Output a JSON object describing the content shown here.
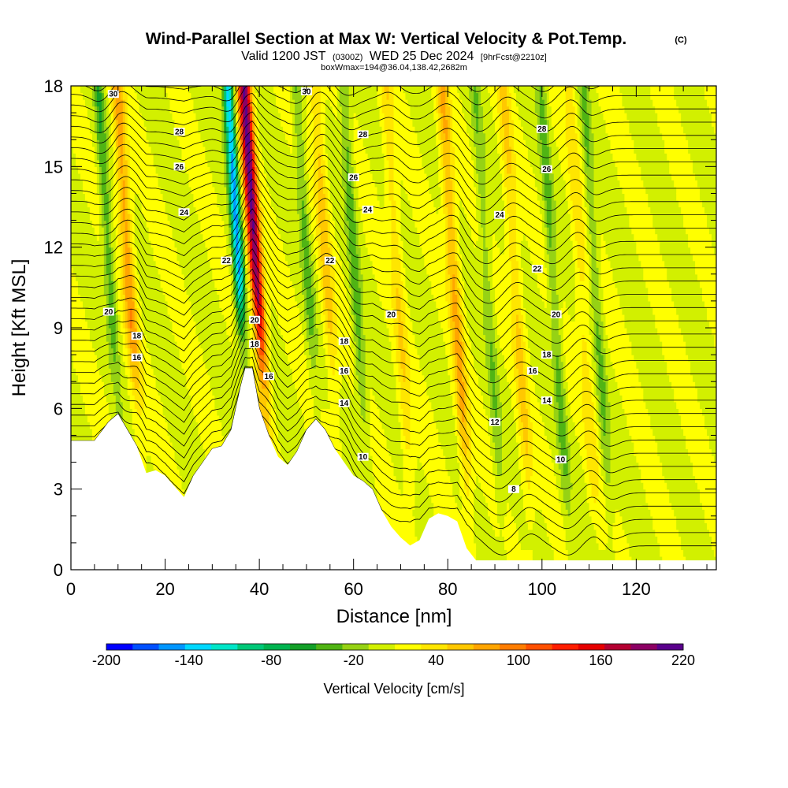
{
  "header": {
    "title": "Wind-Parallel Section at Max W: Vertical Velocity & Pot.Temp.",
    "copyright": "(C)",
    "valid_prefix": "Valid 1200 JST",
    "valid_utc": "(0300Z)",
    "valid_date": "WED 25 Dec 2024",
    "forecast_info": "[9hrFcst@2210z]",
    "box_info": "boxWmax=194@36.04,138.42,2682m"
  },
  "chart_data": {
    "type": "heatmap",
    "title": "Wind-Parallel Section at Max W: Vertical Velocity & Pot.Temp.",
    "xlabel": "Distance [nm]",
    "ylabel": "Height [Kft MSL]",
    "xlim": [
      0,
      137
    ],
    "ylim": [
      0,
      18
    ],
    "x_ticks": [
      "0",
      "20",
      "40",
      "60",
      "80",
      "100",
      "120"
    ],
    "y_ticks": [
      "0",
      "3",
      "6",
      "9",
      "12",
      "15",
      "18"
    ],
    "colorbar": {
      "label": "Vertical Velocity [cm/s]",
      "range": [
        -200,
        220
      ],
      "tick_labels": [
        "-200",
        "-140",
        "-80",
        "-20",
        "40",
        "100",
        "160",
        "220"
      ],
      "colors": [
        "#0000ff",
        "#0050ff",
        "#0096ff",
        "#00d8ff",
        "#00e6c8",
        "#00c878",
        "#00b450",
        "#14a028",
        "#50b414",
        "#96d214",
        "#d2f000",
        "#ffff00",
        "#ffe600",
        "#ffc800",
        "#ffa500",
        "#ff7d00",
        "#ff5000",
        "#ff1e00",
        "#e60000",
        "#b40032",
        "#8c0064",
        "#5a008c"
      ]
    },
    "updraft_bands": [
      {
        "x": 14,
        "peak": 70
      },
      {
        "x": 41,
        "peak": 194
      },
      {
        "x": 56,
        "peak": 45
      },
      {
        "x": 71,
        "peak": 35
      },
      {
        "x": 83,
        "peak": 60
      },
      {
        "x": 96,
        "peak": 40
      },
      {
        "x": 110,
        "peak": 30
      }
    ],
    "downdraft_bands": [
      {
        "x": 10,
        "peak": -50
      },
      {
        "x": 37.5,
        "peak": -150
      },
      {
        "x": 52,
        "peak": -40
      },
      {
        "x": 62,
        "peak": -45
      },
      {
        "x": 90,
        "peak": -30
      },
      {
        "x": 104,
        "peak": -40
      },
      {
        "x": 113,
        "peak": -35
      }
    ],
    "terrain_kft": [
      [
        0,
        4.8
      ],
      [
        5,
        4.8
      ],
      [
        8,
        5.5
      ],
      [
        10,
        5.8
      ],
      [
        12,
        5.2
      ],
      [
        14,
        4.6
      ],
      [
        16,
        3.6
      ],
      [
        18,
        3.7
      ],
      [
        20,
        3.5
      ],
      [
        22,
        3.1
      ],
      [
        24,
        2.7
      ],
      [
        26,
        3.5
      ],
      [
        28,
        4.0
      ],
      [
        30,
        4.5
      ],
      [
        32,
        4.6
      ],
      [
        34,
        5.2
      ],
      [
        36,
        6.8
      ],
      [
        37,
        7.5
      ],
      [
        38.5,
        7.5
      ],
      [
        40,
        6.0
      ],
      [
        42,
        5.0
      ],
      [
        44,
        4.2
      ],
      [
        46,
        3.9
      ],
      [
        48,
        4.4
      ],
      [
        50,
        5.2
      ],
      [
        52,
        5.6
      ],
      [
        54,
        5.2
      ],
      [
        56,
        4.5
      ],
      [
        58,
        4.0
      ],
      [
        60,
        3.5
      ],
      [
        62,
        3.3
      ],
      [
        64,
        3.0
      ],
      [
        66,
        2.2
      ],
      [
        68,
        1.6
      ],
      [
        70,
        1.2
      ],
      [
        72,
        0.9
      ],
      [
        74,
        1.1
      ],
      [
        76,
        1.9
      ],
      [
        78,
        2.1
      ],
      [
        80,
        2.0
      ],
      [
        82,
        1.8
      ],
      [
        84,
        0.8
      ],
      [
        86,
        0.35
      ],
      [
        137,
        0.35
      ]
    ],
    "theta_contours": {
      "label_units": "C",
      "labels": [
        {
          "v": "30",
          "x": 9,
          "y": 17.7
        },
        {
          "v": "30",
          "x": 50,
          "y": 17.8
        },
        {
          "v": "28",
          "x": 23,
          "y": 16.3
        },
        {
          "v": "28",
          "x": 62,
          "y": 16.2
        },
        {
          "v": "28",
          "x": 100,
          "y": 16.4
        },
        {
          "v": "26",
          "x": 23,
          "y": 15.0
        },
        {
          "v": "26",
          "x": 60,
          "y": 14.6
        },
        {
          "v": "26",
          "x": 101,
          "y": 14.9
        },
        {
          "v": "24",
          "x": 24,
          "y": 13.3
        },
        {
          "v": "24",
          "x": 63,
          "y": 13.4
        },
        {
          "v": "24",
          "x": 91,
          "y": 13.2
        },
        {
          "v": "22",
          "x": 33,
          "y": 11.5
        },
        {
          "v": "22",
          "x": 55,
          "y": 11.5
        },
        {
          "v": "22",
          "x": 99,
          "y": 11.2
        },
        {
          "v": "20",
          "x": 8,
          "y": 9.6
        },
        {
          "v": "20",
          "x": 39,
          "y": 9.3
        },
        {
          "v": "20",
          "x": 68,
          "y": 9.5
        },
        {
          "v": "20",
          "x": 103,
          "y": 9.5
        },
        {
          "v": "18",
          "x": 14,
          "y": 8.7
        },
        {
          "v": "18",
          "x": 39,
          "y": 8.4
        },
        {
          "v": "18",
          "x": 58,
          "y": 8.5
        },
        {
          "v": "18",
          "x": 101,
          "y": 8.0
        },
        {
          "v": "16",
          "x": 14,
          "y": 7.9
        },
        {
          "v": "16",
          "x": 42,
          "y": 7.2
        },
        {
          "v": "16",
          "x": 58,
          "y": 7.4
        },
        {
          "v": "16",
          "x": 98,
          "y": 7.4
        },
        {
          "v": "14",
          "x": 58,
          "y": 6.2
        },
        {
          "v": "14",
          "x": 101,
          "y": 6.3
        },
        {
          "v": "12",
          "x": 90,
          "y": 5.5
        },
        {
          "v": "10",
          "x": 62,
          "y": 4.2
        },
        {
          "v": "10",
          "x": 104,
          "y": 4.1
        },
        {
          "v": "8",
          "x": 94,
          "y": 3.0
        }
      ]
    }
  }
}
